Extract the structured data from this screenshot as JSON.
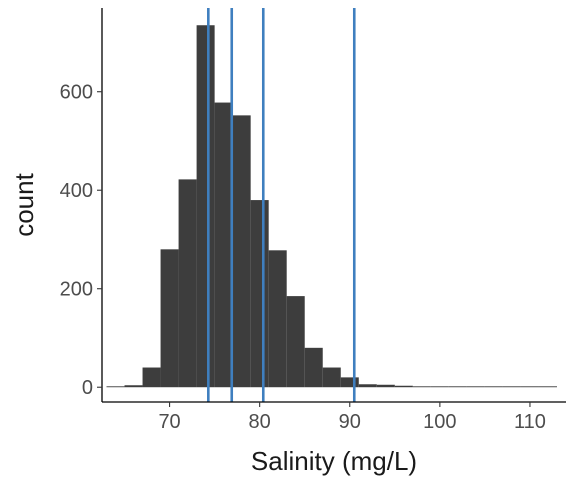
{
  "chart_data": {
    "type": "bar",
    "subtype": "histogram",
    "xlabel": "Salinity (mg/L)",
    "ylabel": "count",
    "xlim": [
      62.5,
      114
    ],
    "ylim": [
      -30,
      770
    ],
    "xticks": [
      70,
      80,
      90,
      100,
      110
    ],
    "yticks": [
      0,
      200,
      400,
      600
    ],
    "bin_width": 2,
    "bar_color": "#3d3d3d",
    "vline_color": "#3f7fbf",
    "bins": [
      {
        "x0": 63,
        "x1": 65,
        "count": 1
      },
      {
        "x0": 65,
        "x1": 67,
        "count": 4
      },
      {
        "x0": 67,
        "x1": 69,
        "count": 40
      },
      {
        "x0": 69,
        "x1": 71,
        "count": 280
      },
      {
        "x0": 71,
        "x1": 73,
        "count": 422
      },
      {
        "x0": 73,
        "x1": 75,
        "count": 735
      },
      {
        "x0": 75,
        "x1": 77,
        "count": 578
      },
      {
        "x0": 77,
        "x1": 79,
        "count": 552
      },
      {
        "x0": 79,
        "x1": 81,
        "count": 380
      },
      {
        "x0": 81,
        "x1": 83,
        "count": 278
      },
      {
        "x0": 83,
        "x1": 85,
        "count": 185
      },
      {
        "x0": 85,
        "x1": 87,
        "count": 80
      },
      {
        "x0": 87,
        "x1": 89,
        "count": 40
      },
      {
        "x0": 89,
        "x1": 91,
        "count": 20
      },
      {
        "x0": 91,
        "x1": 93,
        "count": 6
      },
      {
        "x0": 93,
        "x1": 95,
        "count": 5
      },
      {
        "x0": 95,
        "x1": 97,
        "count": 3
      },
      {
        "x0": 97,
        "x1": 99,
        "count": 0
      },
      {
        "x0": 99,
        "x1": 101,
        "count": 1
      },
      {
        "x0": 101,
        "x1": 103,
        "count": 1
      },
      {
        "x0": 103,
        "x1": 105,
        "count": 0
      },
      {
        "x0": 105,
        "x1": 107,
        "count": 1
      },
      {
        "x0": 107,
        "x1": 109,
        "count": 0
      },
      {
        "x0": 109,
        "x1": 111,
        "count": 0
      },
      {
        "x0": 111,
        "x1": 113,
        "count": 1
      }
    ],
    "vlines": [
      74.3,
      76.9,
      80.4,
      90.5
    ]
  }
}
